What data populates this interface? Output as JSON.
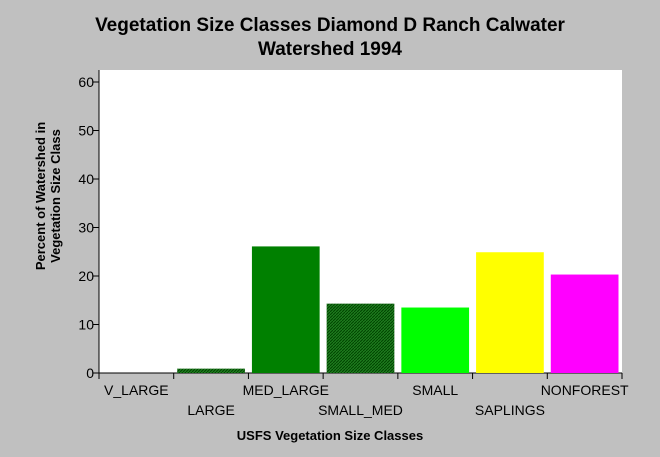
{
  "chart_data": {
    "type": "bar",
    "title_lines": [
      "Vegetation Size Classes Diamond D Ranch Calwater",
      "Watershed 1994"
    ],
    "xlabel": "USFS Vegetation Size Classes",
    "ylabel_lines": [
      "Percent of Watershed in",
      "Vegetation Size Class"
    ],
    "categories": [
      "V_LARGE",
      "LARGE",
      "MED_LARGE",
      "SMALL_MED",
      "SMALL",
      "SAPLINGS",
      "NONFOREST"
    ],
    "values": [
      0,
      0.9,
      26.1,
      14.3,
      13.5,
      24.9,
      20.3
    ],
    "colors": [
      "#006400",
      "#005f00",
      "#008000",
      "#1e7b1e",
      "#00ff00",
      "#ffff00",
      "#ff00ff"
    ],
    "hatched": [
      false,
      true,
      false,
      true,
      false,
      false,
      false
    ],
    "ylim": [
      0,
      60
    ],
    "yticks": [
      0,
      10,
      20,
      30,
      40,
      50,
      60
    ],
    "grid": false,
    "legend": "none"
  }
}
